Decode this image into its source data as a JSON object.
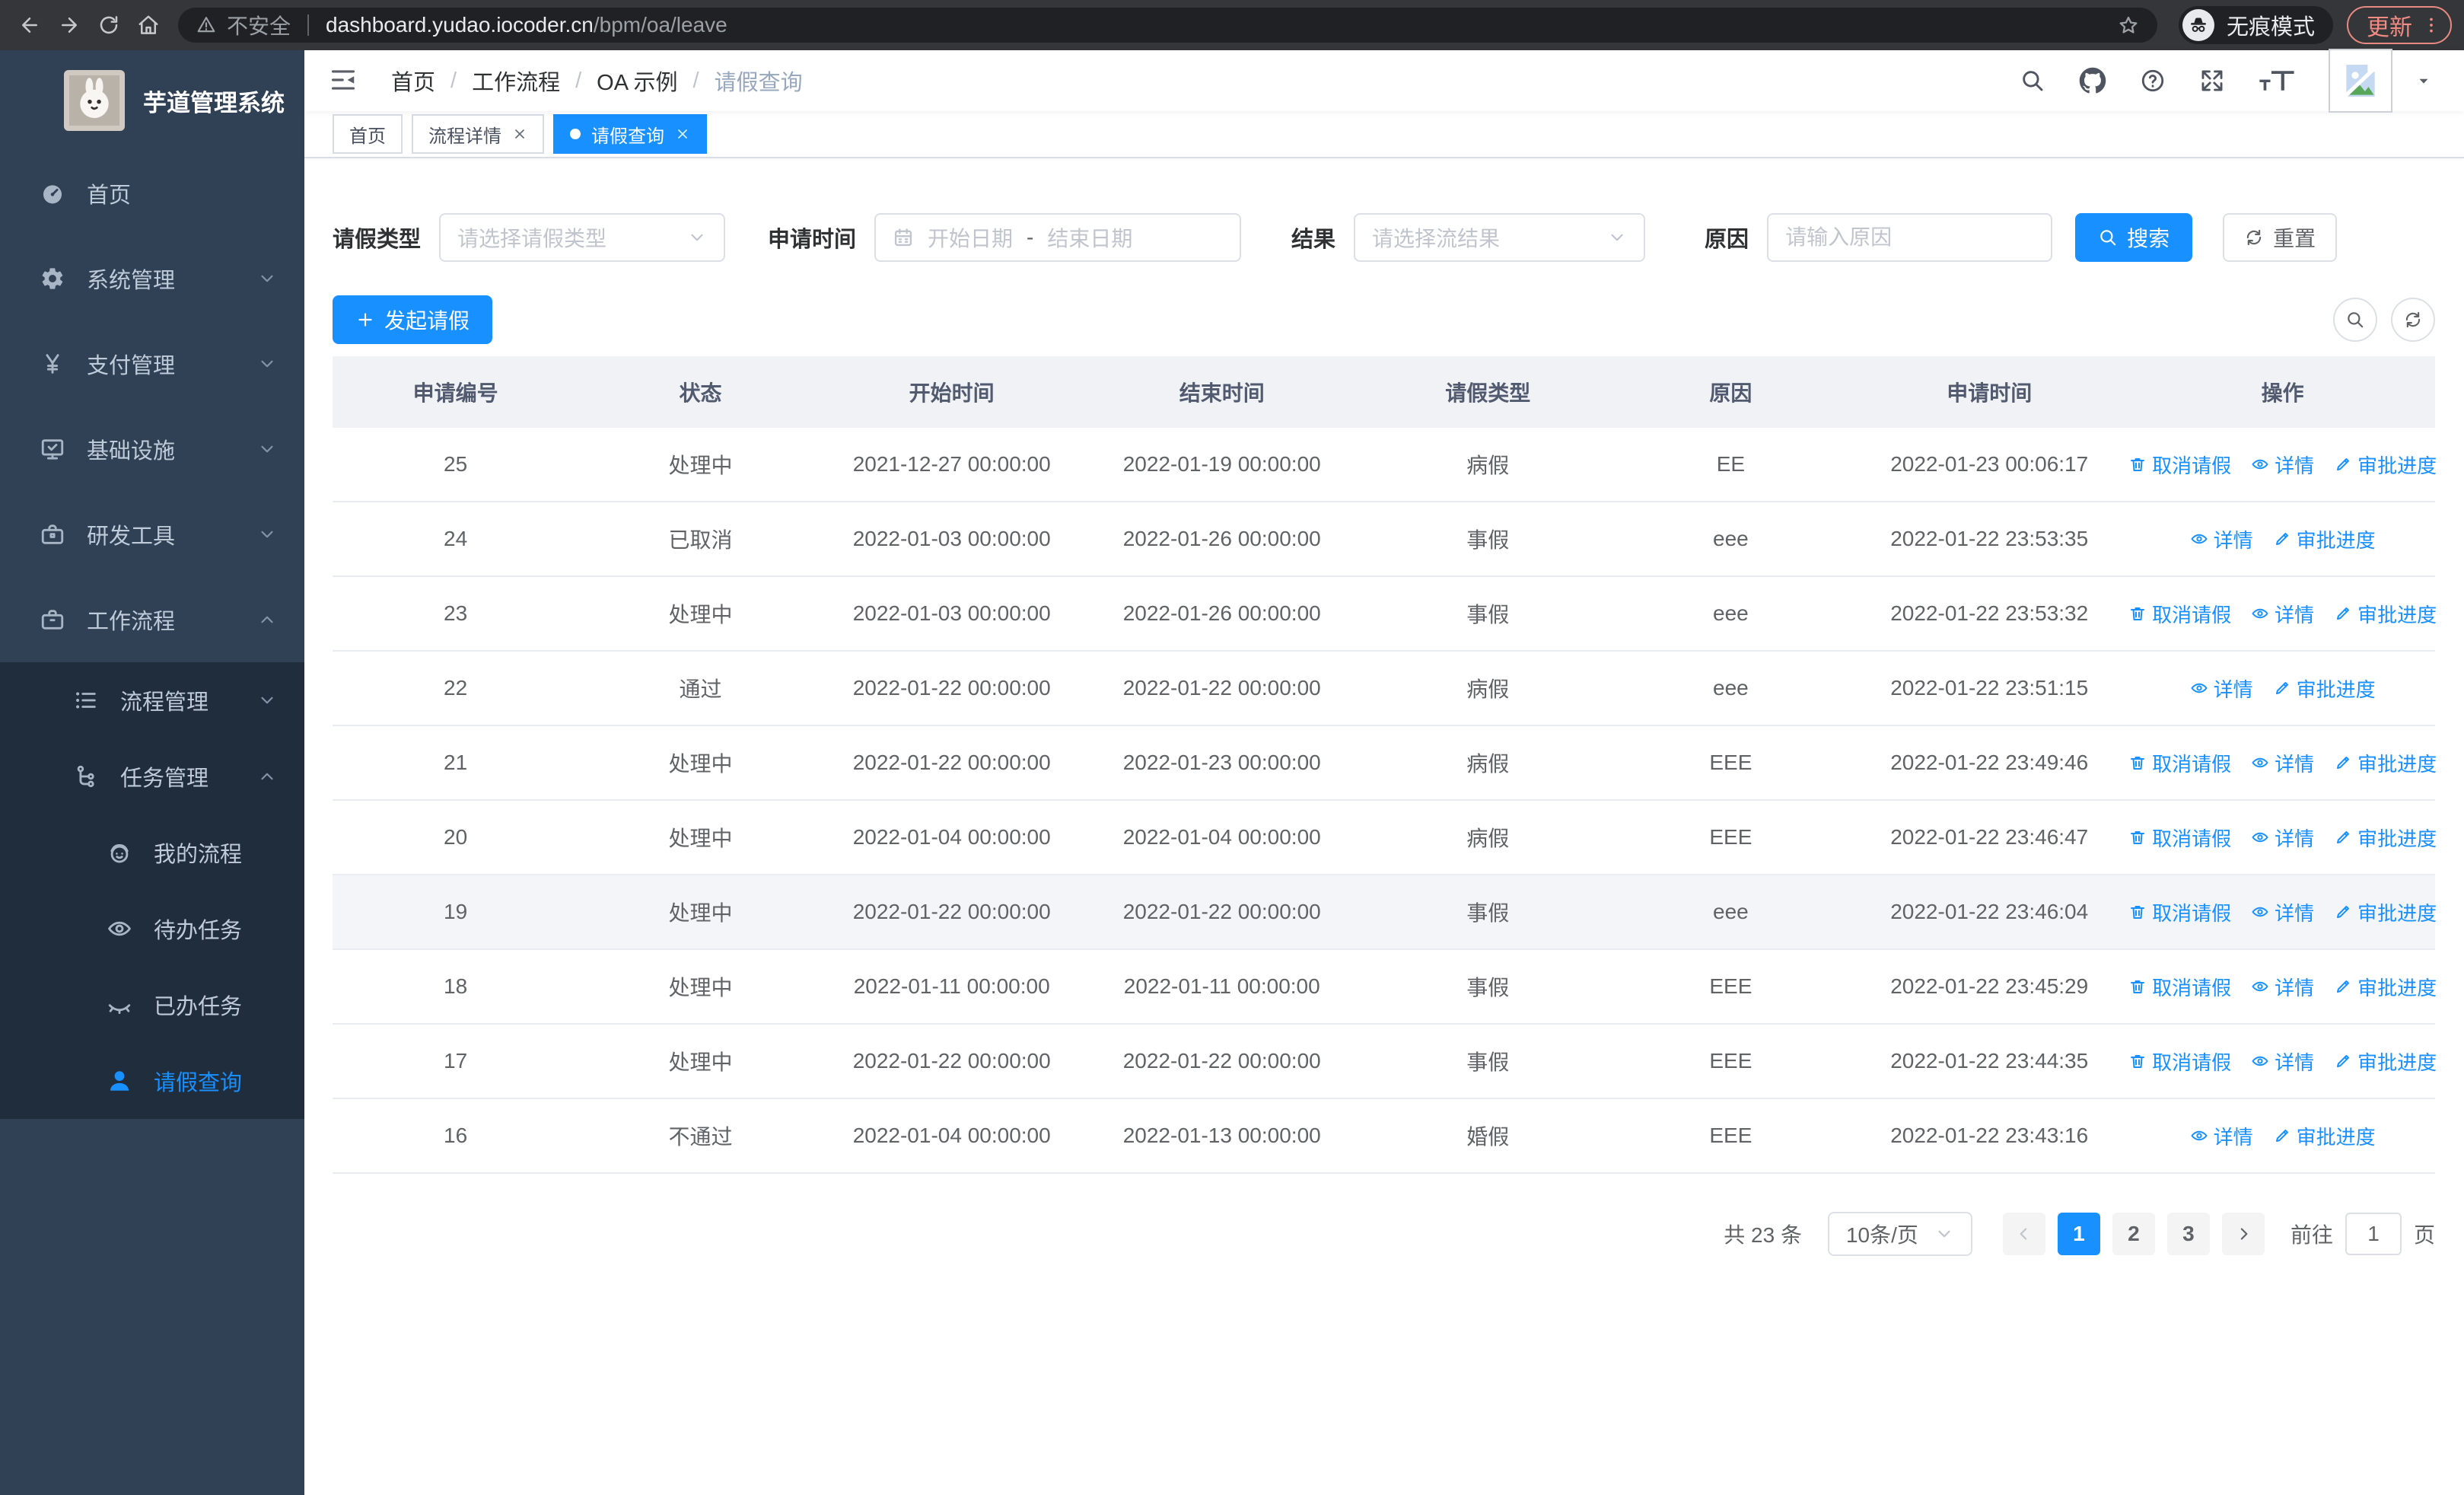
{
  "browser": {
    "security_label": "不安全",
    "url_host": "dashboard.yudao.iocoder.cn",
    "url_path": "/bpm/oa/leave",
    "incognito_label": "无痕模式",
    "update_label": "更新"
  },
  "app_title": "芋道管理系统",
  "breadcrumb": {
    "separator": "/",
    "items": [
      "首页",
      "工作流程",
      "OA 示例",
      "请假查询"
    ]
  },
  "tabs": [
    {
      "label": "首页",
      "closable": false,
      "active": false
    },
    {
      "label": "流程详情",
      "closable": true,
      "active": false
    },
    {
      "label": "请假查询",
      "closable": true,
      "active": true
    }
  ],
  "sidebar": {
    "items": [
      {
        "key": "home",
        "icon": "dashboard-icon",
        "label": "首页"
      },
      {
        "key": "system",
        "icon": "gear-icon",
        "label": "系统管理",
        "chevron": "down"
      },
      {
        "key": "payment",
        "icon": "yen-icon",
        "label": "支付管理",
        "chevron": "down"
      },
      {
        "key": "infrastructure",
        "icon": "monitor-icon",
        "label": "基础设施",
        "chevron": "down"
      },
      {
        "key": "devtools",
        "icon": "toolbox-icon",
        "label": "研发工具",
        "chevron": "down"
      },
      {
        "key": "workflow",
        "icon": "briefcase-icon",
        "label": "工作流程",
        "chevron": "up",
        "children": [
          {
            "key": "process-mgmt",
            "icon": "list-icon",
            "label": "流程管理",
            "chevron": "down"
          },
          {
            "key": "task-mgmt",
            "icon": "tree-icon",
            "label": "任务管理",
            "chevron": "up",
            "children": [
              {
                "key": "my-process",
                "icon": "robot-icon",
                "label": "我的流程"
              },
              {
                "key": "todo-tasks",
                "icon": "eye-icon",
                "label": "待办任务"
              },
              {
                "key": "done-tasks",
                "icon": "eye-closed-icon",
                "label": "已办任务"
              },
              {
                "key": "leave-query",
                "icon": "user-icon",
                "label": "请假查询",
                "active": true
              }
            ]
          }
        ]
      }
    ]
  },
  "filters": {
    "leave_type": {
      "label": "请假类型",
      "placeholder": "请选择请假类型"
    },
    "apply_time": {
      "label": "申请时间",
      "start_placeholder": "开始日期",
      "separator": "-",
      "end_placeholder": "结束日期"
    },
    "result": {
      "label": "结果",
      "placeholder": "请选择流结果"
    },
    "reason": {
      "label": "原因",
      "placeholder": "请输入原因"
    },
    "search_label": "搜索",
    "reset_label": "重置"
  },
  "toolbar": {
    "create_label": "发起请假"
  },
  "table": {
    "columns": [
      "申请编号",
      "状态",
      "开始时间",
      "结束时间",
      "请假类型",
      "原因",
      "申请时间",
      "操作"
    ],
    "action_labels": {
      "cancel": "取消请假",
      "detail": "详情",
      "progress": "审批进度"
    },
    "rows": [
      {
        "id": "25",
        "status": "处理中",
        "start": "2021-12-27 00:00:00",
        "end": "2022-01-19 00:00:00",
        "type": "病假",
        "reason": "EE",
        "applied": "2022-01-23 00:06:17",
        "actions": [
          "cancel",
          "detail",
          "progress"
        ]
      },
      {
        "id": "24",
        "status": "已取消",
        "start": "2022-01-03 00:00:00",
        "end": "2022-01-26 00:00:00",
        "type": "事假",
        "reason": "eee",
        "applied": "2022-01-22 23:53:35",
        "actions": [
          "detail",
          "progress"
        ]
      },
      {
        "id": "23",
        "status": "处理中",
        "start": "2022-01-03 00:00:00",
        "end": "2022-01-26 00:00:00",
        "type": "事假",
        "reason": "eee",
        "applied": "2022-01-22 23:53:32",
        "actions": [
          "cancel",
          "detail",
          "progress"
        ]
      },
      {
        "id": "22",
        "status": "通过",
        "start": "2022-01-22 00:00:00",
        "end": "2022-01-22 00:00:00",
        "type": "病假",
        "reason": "eee",
        "applied": "2022-01-22 23:51:15",
        "actions": [
          "detail",
          "progress"
        ]
      },
      {
        "id": "21",
        "status": "处理中",
        "start": "2022-01-22 00:00:00",
        "end": "2022-01-23 00:00:00",
        "type": "病假",
        "reason": "EEE",
        "applied": "2022-01-22 23:49:46",
        "actions": [
          "cancel",
          "detail",
          "progress"
        ]
      },
      {
        "id": "20",
        "status": "处理中",
        "start": "2022-01-04 00:00:00",
        "end": "2022-01-04 00:00:00",
        "type": "病假",
        "reason": "EEE",
        "applied": "2022-01-22 23:46:47",
        "actions": [
          "cancel",
          "detail",
          "progress"
        ]
      },
      {
        "id": "19",
        "status": "处理中",
        "start": "2022-01-22 00:00:00",
        "end": "2022-01-22 00:00:00",
        "type": "事假",
        "reason": "eee",
        "applied": "2022-01-22 23:46:04",
        "actions": [
          "cancel",
          "detail",
          "progress"
        ],
        "hover": true
      },
      {
        "id": "18",
        "status": "处理中",
        "start": "2022-01-11 00:00:00",
        "end": "2022-01-11 00:00:00",
        "type": "事假",
        "reason": "EEE",
        "applied": "2022-01-22 23:45:29",
        "actions": [
          "cancel",
          "detail",
          "progress"
        ]
      },
      {
        "id": "17",
        "status": "处理中",
        "start": "2022-01-22 00:00:00",
        "end": "2022-01-22 00:00:00",
        "type": "事假",
        "reason": "EEE",
        "applied": "2022-01-22 23:44:35",
        "actions": [
          "cancel",
          "detail",
          "progress"
        ]
      },
      {
        "id": "16",
        "status": "不通过",
        "start": "2022-01-04 00:00:00",
        "end": "2022-01-13 00:00:00",
        "type": "婚假",
        "reason": "EEE",
        "applied": "2022-01-22 23:43:16",
        "actions": [
          "detail",
          "progress"
        ]
      }
    ]
  },
  "pagination": {
    "total_label": "共 23 条",
    "page_size_label": "10条/页",
    "pages": [
      "1",
      "2",
      "3"
    ],
    "current_page": "1",
    "goto_label": "前往",
    "goto_value": "1",
    "unit_label": "页"
  },
  "colors": {
    "primary": "#1890ff",
    "sidebar_bg": "#304156",
    "submenu_bg": "#1f2d3d"
  }
}
